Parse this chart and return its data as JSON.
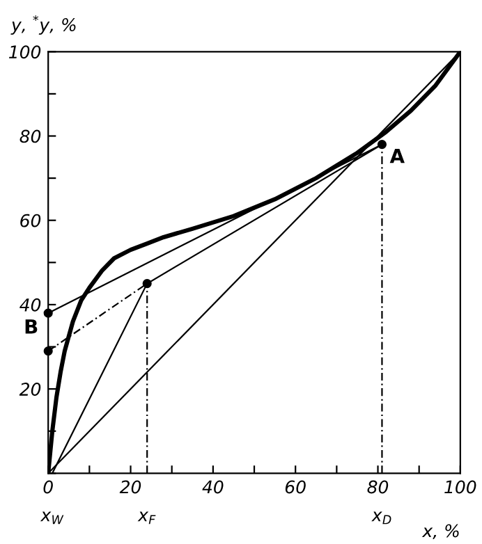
{
  "chart_data": {
    "type": "line",
    "xlabel": "x, %",
    "ylabel": "y, $^{*}$y, %",
    "xlim": [
      0,
      100
    ],
    "ylim": [
      0,
      100
    ],
    "xticks": [
      0,
      {
        "value": 10,
        "label": null
      },
      20,
      {
        "value": 30,
        "label": null
      },
      40,
      {
        "value": 50,
        "label": null
      },
      60,
      {
        "value": 70,
        "label": null
      },
      80,
      {
        "value": 90,
        "label": null
      },
      100
    ],
    "yticks": [
      {
        "value": 0,
        "label": null
      },
      {
        "value": 10,
        "label": null
      },
      20,
      {
        "value": 30,
        "label": null
      },
      40,
      {
        "value": 50,
        "label": null
      },
      60,
      {
        "value": 70,
        "label": null
      },
      80,
      {
        "value": 90,
        "label": null
      },
      100
    ],
    "grid": false,
    "series": [
      {
        "color": "#000000",
        "line_style": "solid",
        "x": [
          0,
          0.5,
          1,
          2,
          3,
          4,
          6,
          8,
          10,
          13,
          16,
          20,
          24,
          28,
          35,
          45,
          55,
          65,
          75,
          82,
          88,
          94,
          100
        ],
        "values": [
          0,
          5,
          10,
          18,
          24,
          29,
          36,
          41,
          44,
          48,
          51,
          53,
          54.5,
          56,
          58,
          61,
          65,
          70,
          76,
          81,
          86,
          92,
          100
        ]
      },
      {
        "color": "#000000",
        "line_style": "solid",
        "x": [
          0,
          100
        ],
        "values": [
          0,
          100
        ]
      },
      {
        "color": "#000000",
        "line_style": "solid",
        "x": [
          0,
          81
        ],
        "values": [
          38,
          78
        ]
      },
      {
        "color": "#000000",
        "line_style": "solid",
        "x": [
          24,
          81
        ],
        "values": [
          45,
          78
        ]
      },
      {
        "color": "#000000",
        "line_style": "solid",
        "x": [
          1,
          24
        ],
        "values": [
          0,
          45
        ]
      },
      {
        "color": "#000000",
        "line_style": "dashed",
        "x": [
          0,
          24
        ],
        "values": [
          29,
          45
        ]
      },
      {
        "color": "#000000",
        "line_style": "dashed",
        "x": [
          24,
          24
        ],
        "values": [
          0,
          45
        ]
      },
      {
        "color": "#000000",
        "line_style": "dashed",
        "x": [
          81,
          81
        ],
        "values": [
          0,
          78
        ]
      },
      {
        "type": "scatter",
        "color": "#000000",
        "marker": "circle",
        "x": [
          81,
          0,
          0,
          24
        ],
        "values": [
          78,
          38,
          29,
          45
        ]
      }
    ],
    "annotations": [
      {
        "text": "A",
        "x": 81,
        "y": 78
      },
      {
        "text": "B",
        "x": 0,
        "y": 38
      },
      {
        "text": "x$_{W}$",
        "x": 1,
        "y": 0
      },
      {
        "text": "x$_{F}$",
        "x": 24,
        "y": 0
      },
      {
        "text": "x$_{D}$",
        "x": 81,
        "y": 0
      }
    ]
  }
}
